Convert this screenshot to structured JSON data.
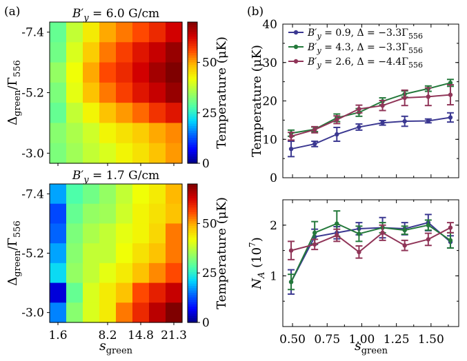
{
  "panels": {
    "a": "(a)",
    "b": "(b)"
  },
  "colormap": [
    "#00007f",
    "#0000ff",
    "#0063ff",
    "#00d4ff",
    "#4dffaa",
    "#a0ff57",
    "#f0ff06",
    "#ffb900",
    "#ff4800",
    "#d20000",
    "#7f0000"
  ],
  "chart_data": [
    {
      "id": "heatmap-top",
      "type": "heatmap",
      "title": "B′y = 6.0 G/cm",
      "title_parts": {
        "symbol": "B",
        "prime": "′",
        "sub": "y",
        "rest": " = 6.0 G/cm"
      },
      "xlabel": {
        "main": "s",
        "sub": "green"
      },
      "ylabel": {
        "main": "Δ",
        "sub1": "green",
        "mid": "/Γ",
        "sub2": "556"
      },
      "x_tick_labels": [
        "1.6",
        "8.2",
        "14.8",
        "21.3"
      ],
      "x_tick_cols": [
        0,
        3,
        5,
        7
      ],
      "y_tick_labels": [
        "-7.4",
        "-5.2",
        "-3.0"
      ],
      "y_tick_rows": [
        0,
        3,
        6
      ],
      "colorbar": {
        "label": "Temperature (μK)",
        "ticks": [
          0,
          25,
          50
        ],
        "range": [
          0,
          70
        ]
      },
      "cells": [
        [
          30,
          38,
          44,
          50,
          53,
          56,
          59,
          63
        ],
        [
          31,
          40,
          47,
          53,
          57,
          61,
          64,
          68
        ],
        [
          34,
          42,
          50,
          56,
          59,
          63,
          67,
          74
        ],
        [
          32,
          41,
          48,
          53,
          57,
          61,
          64,
          68
        ],
        [
          30,
          38,
          43,
          48,
          51,
          54,
          58,
          61
        ],
        [
          33,
          36,
          39,
          43,
          45,
          47,
          50,
          52
        ],
        [
          32,
          35,
          38,
          40,
          43,
          45,
          48,
          51
        ]
      ]
    },
    {
      "id": "heatmap-bottom",
      "type": "heatmap",
      "title": "B′y = 1.7 G/cm",
      "title_parts": {
        "symbol": "B",
        "prime": "′",
        "sub": "y",
        "rest": " = 1.7 G/cm"
      },
      "xlabel": {
        "main": "s",
        "sub": "green"
      },
      "ylabel": {
        "main": "Δ",
        "sub1": "green",
        "mid": "/Γ",
        "sub2": "556"
      },
      "x_tick_labels": [
        "1.6",
        "8.2",
        "14.8",
        "21.3"
      ],
      "x_tick_cols": [
        0,
        3,
        5,
        7
      ],
      "y_tick_labels": [
        "-7.4",
        "-5.2",
        "-3.0"
      ],
      "y_tick_rows": [
        0,
        3,
        6
      ],
      "colorbar": {
        "label": "Temperature (μK)",
        "ticks": [
          0,
          25,
          50
        ],
        "range": [
          0,
          70
        ]
      },
      "cells": [
        [
          18,
          28,
          31,
          34,
          38,
          42,
          44,
          49
        ],
        [
          12,
          30,
          34,
          35,
          39,
          43,
          45,
          48
        ],
        [
          14,
          32,
          36,
          38,
          41,
          43,
          46,
          53
        ],
        [
          18,
          33,
          38,
          38,
          42,
          45,
          48,
          53
        ],
        [
          22,
          34,
          38,
          41,
          44,
          48,
          52,
          56
        ],
        [
          5,
          30,
          40,
          44,
          48,
          56,
          60,
          64
        ],
        [
          16,
          33,
          40,
          44,
          53,
          59,
          65,
          71
        ]
      ]
    },
    {
      "id": "temperature-plot",
      "type": "line",
      "xlabel": {
        "main": "s",
        "sub": "green"
      },
      "ylabel": "Temperature (μK)",
      "xlim": [
        0.43,
        1.7
      ],
      "ylim": [
        0,
        40
      ],
      "y_ticks": [
        0,
        10,
        20,
        30,
        40
      ],
      "x_ticks": [
        0.5,
        0.75,
        1.0,
        1.25,
        1.5
      ],
      "legend_position": "top-left",
      "x": [
        0.49,
        0.66,
        0.82,
        0.98,
        1.15,
        1.31,
        1.48,
        1.64
      ],
      "series": [
        {
          "legend": {
            "prime_sym": "B",
            "prime": "′",
            "sub": "y",
            "text": " = 0.9,  Δ = −3.3Γ",
            "sub2": "556"
          },
          "color": "#3b3891",
          "values": [
            7.5,
            8.8,
            11.3,
            13.2,
            14.3,
            14.7,
            14.8,
            15.7
          ],
          "errors": [
            2.0,
            0.7,
            1.8,
            0.8,
            0.6,
            1.3,
            0.5,
            1.2
          ]
        },
        {
          "legend": {
            "prime_sym": "B",
            "prime": "′",
            "sub": "y",
            "text": " = 4.3,  Δ = −3.3Γ",
            "sub2": "556"
          },
          "color": "#24793b",
          "values": [
            11.6,
            12.6,
            15.6,
            17.0,
            19.9,
            21.8,
            23.2,
            24.7
          ],
          "errors": [
            0.8,
            0.6,
            1.0,
            1.0,
            0.9,
            0.8,
            0.7,
            0.9
          ]
        },
        {
          "legend": {
            "prime_sym": "B",
            "prime": "′",
            "sub": "y",
            "text": " = 2.6,  Δ = −4.4Γ",
            "sub2": "556"
          },
          "color": "#903558",
          "values": [
            10.8,
            12.5,
            15.1,
            17.9,
            18.8,
            20.8,
            21.1,
            21.6
          ],
          "errors": [
            1.0,
            0.8,
            1.0,
            1.0,
            1.3,
            2.0,
            2.3,
            2.6
          ]
        }
      ]
    },
    {
      "id": "atom-number-plot",
      "type": "line",
      "xlabel": {
        "main": "s",
        "sub": "green"
      },
      "ylabel": {
        "main": "N",
        "sub": "A",
        "rest": " (10",
        "sup": "7",
        "end": ")"
      },
      "ylim": [
        0,
        2.5
      ],
      "y_ticks": [
        1,
        2
      ],
      "x_ticks": [
        0.5,
        0.75,
        1.0,
        1.25,
        1.5
      ],
      "x_tick_labels": [
        "0.50",
        "0.75",
        "1.00",
        "1.25",
        "1.50"
      ],
      "x": [
        0.49,
        0.66,
        0.82,
        0.98,
        1.15,
        1.31,
        1.48,
        1.64
      ],
      "series": [
        {
          "color": "#3b3891",
          "values": [
            0.88,
            1.77,
            1.85,
            1.93,
            1.95,
            1.93,
            2.05,
            1.67
          ],
          "errors": [
            0.24,
            0.15,
            0.12,
            0.12,
            0.2,
            0.12,
            0.16,
            0.12
          ]
        },
        {
          "color": "#24793b",
          "values": [
            0.88,
            1.85,
            2.03,
            1.83,
            1.95,
            1.9,
            2.0,
            1.7
          ],
          "errors": [
            0.15,
            0.22,
            0.25,
            0.15,
            0.1,
            0.08,
            0.1,
            0.15
          ]
        },
        {
          "color": "#903558",
          "values": [
            1.5,
            1.62,
            1.8,
            1.47,
            1.85,
            1.6,
            1.72,
            1.95
          ],
          "errors": [
            0.18,
            0.1,
            0.12,
            0.12,
            0.15,
            0.1,
            0.12,
            0.1
          ]
        }
      ]
    }
  ]
}
